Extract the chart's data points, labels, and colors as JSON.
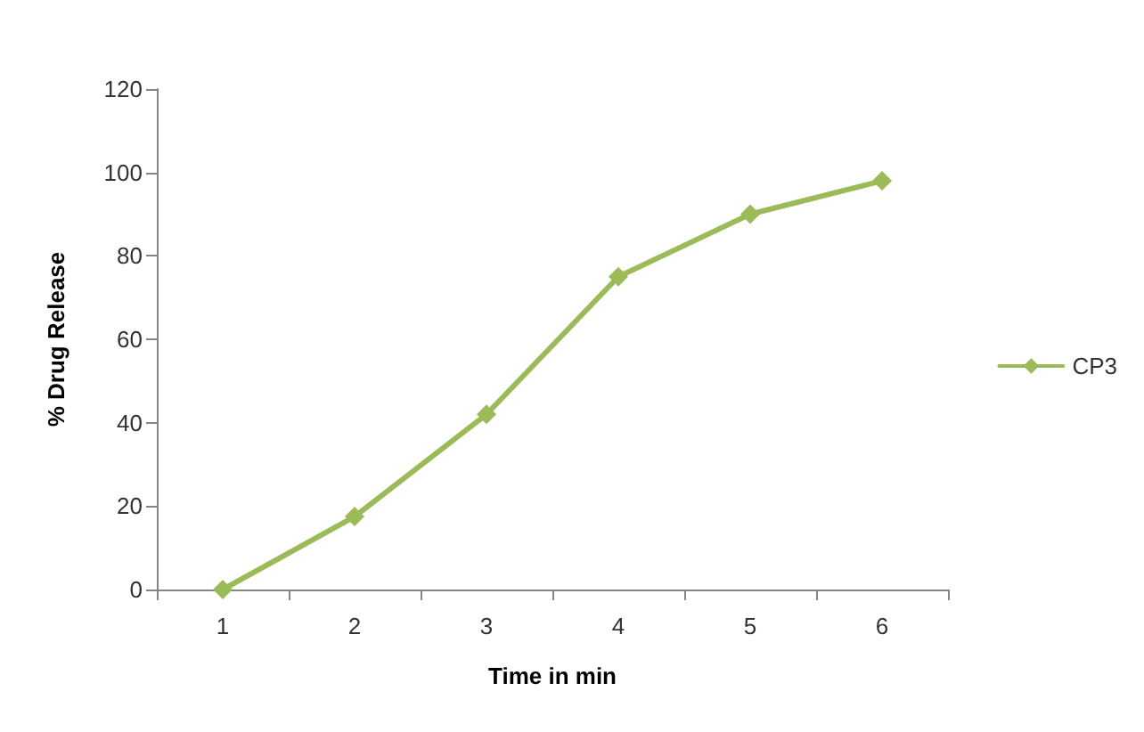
{
  "chart_data": {
    "type": "line",
    "xlabel": "Time in min",
    "ylabel": "% Drug Release",
    "categories": [
      "1",
      "2",
      "3",
      "4",
      "5",
      "6"
    ],
    "series": [
      {
        "name": "CP3",
        "color": "#9bbb59",
        "values": [
          0,
          17.5,
          42,
          75,
          90,
          98
        ]
      }
    ],
    "ylim": [
      0,
      120
    ],
    "yticks": [
      0,
      20,
      40,
      60,
      80,
      100,
      120
    ],
    "grid": false,
    "legend": "right",
    "marker": "diamond",
    "line_style": "solid"
  }
}
